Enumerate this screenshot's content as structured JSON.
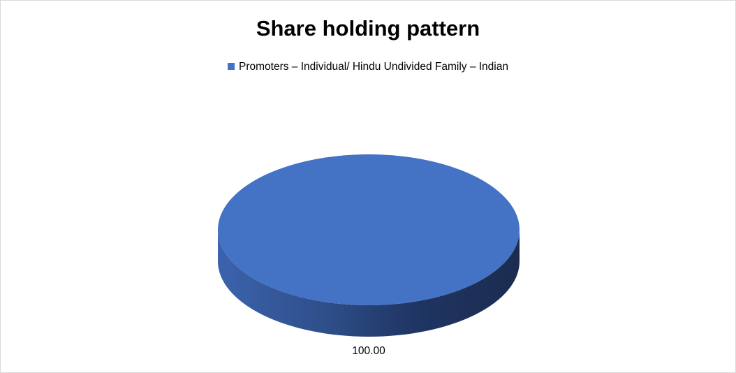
{
  "chart_data": {
    "type": "pie",
    "style": "3d",
    "title": "Share holding pattern",
    "legend_position": "top",
    "series": [
      {
        "name": "Promoters – Individual/ Hindu Undivided Family – Indian",
        "value": 100.0,
        "label": "100.00",
        "color": "#4472c4"
      }
    ]
  }
}
